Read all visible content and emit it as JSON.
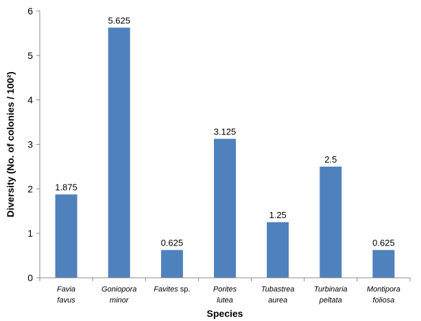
{
  "chart_data": {
    "type": "bar",
    "categories": [
      {
        "lines": [
          [
            {
              "text": "Favia",
              "italic": true
            }
          ],
          [
            {
              "text": "favus",
              "italic": true
            }
          ]
        ]
      },
      {
        "lines": [
          [
            {
              "text": "Goniopora",
              "italic": true
            }
          ],
          [
            {
              "text": "minor",
              "italic": true
            }
          ]
        ]
      },
      {
        "lines": [
          [
            {
              "text": "Favites",
              "italic": true
            },
            {
              "text": " sp.",
              "italic": false
            }
          ]
        ]
      },
      {
        "lines": [
          [
            {
              "text": "Porites",
              "italic": true
            }
          ],
          [
            {
              "text": "lutea",
              "italic": true
            }
          ]
        ]
      },
      {
        "lines": [
          [
            {
              "text": "Tubastrea",
              "italic": true
            }
          ],
          [
            {
              "text": "aurea",
              "italic": true
            }
          ]
        ]
      },
      {
        "lines": [
          [
            {
              "text": "Turbinaria",
              "italic": true
            }
          ],
          [
            {
              "text": "peltata",
              "italic": true
            }
          ]
        ]
      },
      {
        "lines": [
          [
            {
              "text": "Montipora",
              "italic": true
            }
          ],
          [
            {
              "text": "foliosa",
              "italic": true
            }
          ]
        ]
      }
    ],
    "values": [
      1.875,
      5.625,
      0.625,
      3.125,
      1.25,
      2.5,
      0.625
    ],
    "data_labels": [
      "1.875",
      "5.625",
      "0.625",
      "3.125",
      "1.25",
      "2.5",
      "0.625"
    ],
    "xlabel": "Species",
    "ylabel": "Diversity (No. of colonies / 100²)",
    "ylim": [
      0,
      6
    ],
    "yticks": [
      0,
      1,
      2,
      3,
      4,
      5,
      6
    ],
    "grid": false,
    "legend": "none",
    "bar_color": "#4f81bd",
    "axis_color": "#888888"
  }
}
